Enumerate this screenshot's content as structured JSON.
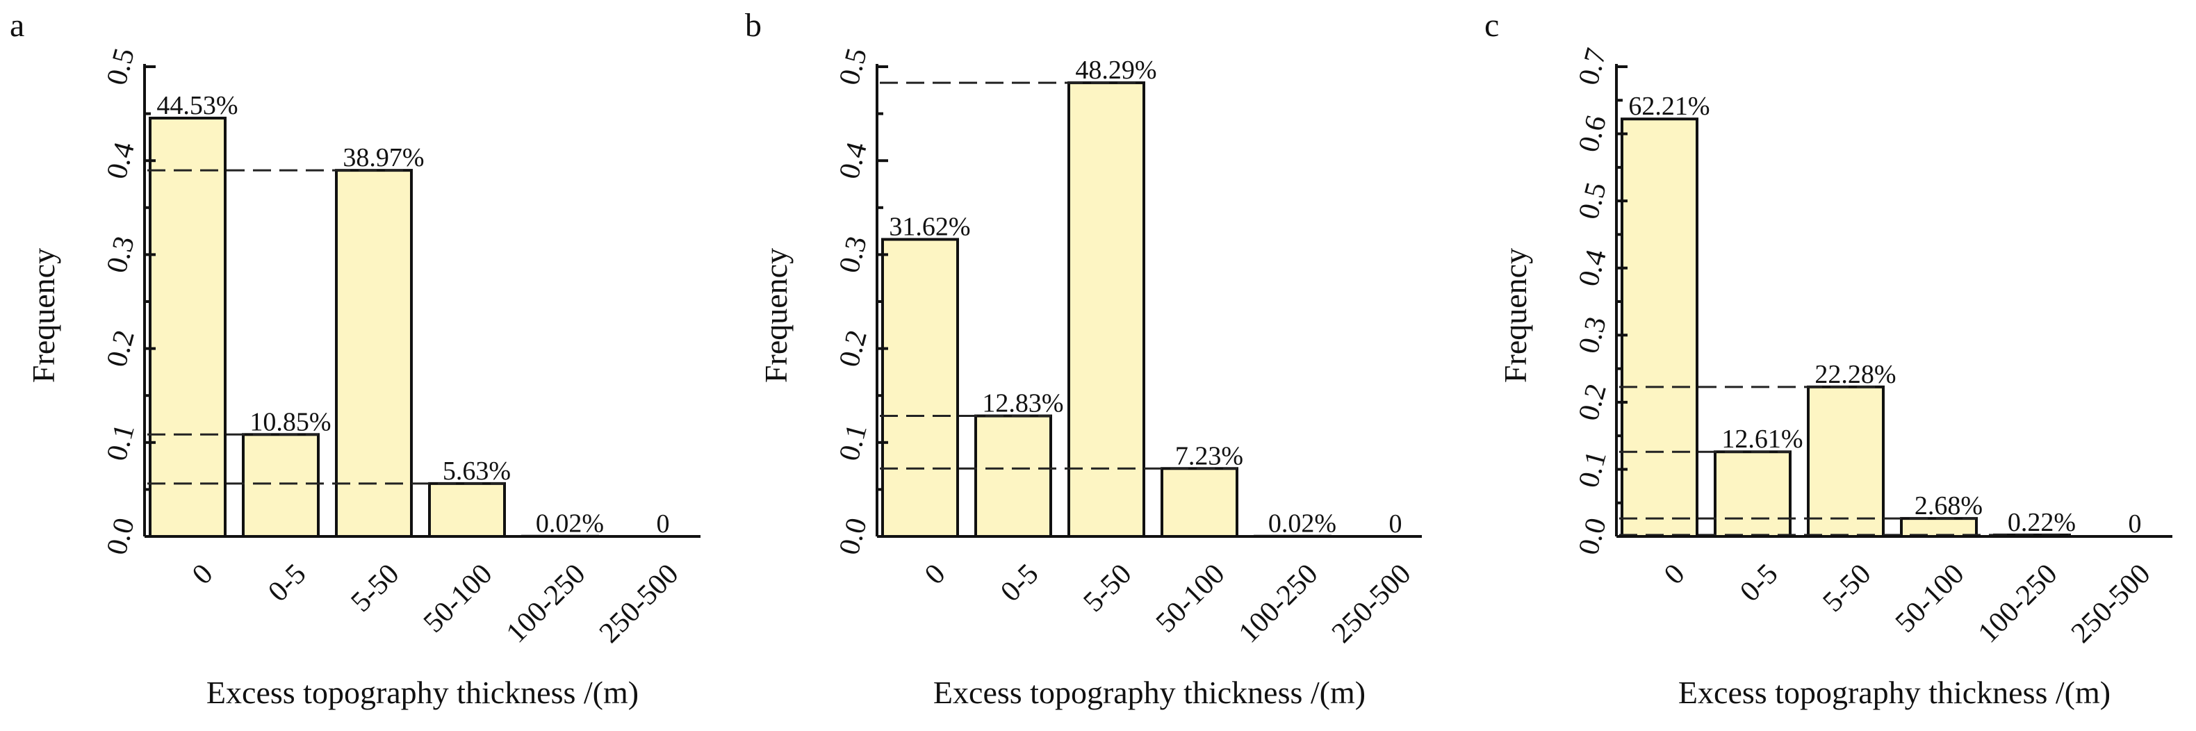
{
  "chart_data": [
    {
      "type": "bar",
      "panel": "a",
      "categories": [
        "0",
        "0-5",
        "5-50",
        "50-100",
        "100-250",
        "250-500"
      ],
      "values": [
        0.4453,
        0.1085,
        0.3897,
        0.0563,
        0.0002,
        0
      ],
      "data_labels": [
        "44.53%",
        "10.85%",
        "38.97%",
        "5.63%",
        "0.02%",
        "0"
      ],
      "xlabel": "Excess topography thickness /(m)",
      "ylabel": "Frequency",
      "ylim": [
        0,
        0.5
      ],
      "yticks": [
        "0.0",
        "0.1",
        "0.2",
        "0.3",
        "0.4",
        "0.5"
      ],
      "reference_lines": [
        0.3897,
        0.1085,
        0.0563,
        0.0002
      ]
    },
    {
      "type": "bar",
      "panel": "b",
      "categories": [
        "0",
        "0-5",
        "5-50",
        "50-100",
        "100-250",
        "250-500"
      ],
      "values": [
        0.3162,
        0.1283,
        0.4829,
        0.0723,
        0.0002,
        0
      ],
      "data_labels": [
        "31.62%",
        "12.83%",
        "48.29%",
        "7.23%",
        "0.02%",
        "0"
      ],
      "xlabel": "Excess topography thickness /(m)",
      "ylabel": "Frequency",
      "ylim": [
        0,
        0.5
      ],
      "yticks": [
        "0.0",
        "0.1",
        "0.2",
        "0.3",
        "0.4",
        "0.5"
      ],
      "reference_lines": [
        0.4829,
        0.1283,
        0.0723,
        0.0002
      ]
    },
    {
      "type": "bar",
      "panel": "c",
      "categories": [
        "0",
        "0-5",
        "5-50",
        "50-100",
        "100-250",
        "250-500"
      ],
      "values": [
        0.6221,
        0.1261,
        0.2228,
        0.0268,
        0.0022,
        0
      ],
      "data_labels": [
        "62.21%",
        "12.61%",
        "22.28%",
        "2.68%",
        "0.22%",
        "0"
      ],
      "xlabel": "Excess topography thickness /(m)",
      "ylabel": "Frequency",
      "ylim": [
        0,
        0.7
      ],
      "yticks": [
        "0.0",
        "0.1",
        "0.2",
        "0.3",
        "0.4",
        "0.5",
        "0.6",
        "0.7"
      ],
      "reference_lines": [
        0.2228,
        0.1261,
        0.0268,
        0.0022
      ]
    }
  ],
  "colors": {
    "bar_fill": "#fdf5c3",
    "outline": "#111111"
  }
}
